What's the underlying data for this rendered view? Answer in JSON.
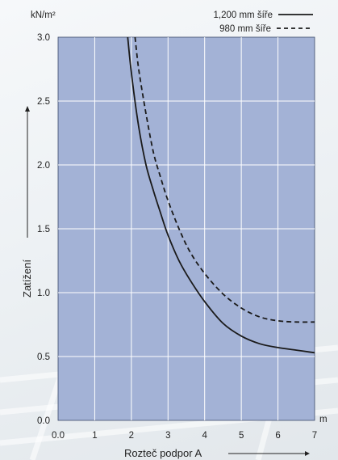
{
  "chart_data": {
    "type": "line",
    "y_unit": "kN/m²",
    "x_unit": "m",
    "xlabel": "Rozteč podpor A",
    "ylabel": "Zatížení",
    "xlim": [
      0,
      7
    ],
    "ylim": [
      0,
      3.0
    ],
    "x_ticks": [
      "0.0",
      "1",
      "2",
      "3",
      "4",
      "5",
      "6",
      "7"
    ],
    "y_ticks": [
      "0.0",
      "0.5",
      "1.0",
      "1.5",
      "2.0",
      "2.5",
      "3.0"
    ],
    "grid": true,
    "legend_position": "top-right",
    "plot_background": "#a3b2d6",
    "series": [
      {
        "name": "1,200 mm šíře",
        "style": "solid",
        "color": "#1a1a1a",
        "points": [
          {
            "x": 1.9,
            "y": 3.0
          },
          {
            "x": 2.0,
            "y": 2.72
          },
          {
            "x": 2.2,
            "y": 2.3
          },
          {
            "x": 2.4,
            "y": 2.0
          },
          {
            "x": 2.6,
            "y": 1.8
          },
          {
            "x": 2.8,
            "y": 1.62
          },
          {
            "x": 3.0,
            "y": 1.45
          },
          {
            "x": 3.3,
            "y": 1.25
          },
          {
            "x": 3.6,
            "y": 1.1
          },
          {
            "x": 4.0,
            "y": 0.93
          },
          {
            "x": 4.5,
            "y": 0.76
          },
          {
            "x": 5.0,
            "y": 0.66
          },
          {
            "x": 5.5,
            "y": 0.6
          },
          {
            "x": 6.0,
            "y": 0.57
          },
          {
            "x": 6.5,
            "y": 0.55
          },
          {
            "x": 7.0,
            "y": 0.53
          }
        ]
      },
      {
        "name": "980 mm šíře",
        "style": "dashed",
        "color": "#1a1a1a",
        "points": [
          {
            "x": 2.1,
            "y": 3.0
          },
          {
            "x": 2.2,
            "y": 2.75
          },
          {
            "x": 2.4,
            "y": 2.4
          },
          {
            "x": 2.6,
            "y": 2.1
          },
          {
            "x": 2.8,
            "y": 1.9
          },
          {
            "x": 3.0,
            "y": 1.72
          },
          {
            "x": 3.3,
            "y": 1.5
          },
          {
            "x": 3.6,
            "y": 1.32
          },
          {
            "x": 4.0,
            "y": 1.15
          },
          {
            "x": 4.5,
            "y": 0.99
          },
          {
            "x": 5.0,
            "y": 0.88
          },
          {
            "x": 5.5,
            "y": 0.81
          },
          {
            "x": 6.0,
            "y": 0.78
          },
          {
            "x": 6.5,
            "y": 0.77
          },
          {
            "x": 7.0,
            "y": 0.77
          }
        ]
      }
    ]
  }
}
